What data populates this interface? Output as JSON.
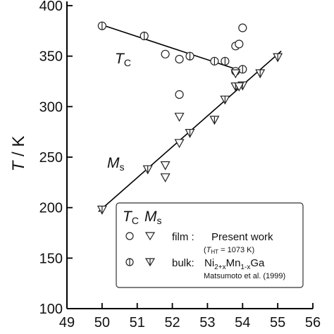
{
  "chart_data": {
    "type": "scatter",
    "xlim": [
      49,
      56
    ],
    "ylim": [
      100,
      400
    ],
    "y_label_T": "T",
    "y_label_sep": " / K",
    "x_ticks": [
      49,
      50,
      51,
      52,
      53,
      54,
      55,
      56
    ],
    "y_ticks": [
      100,
      150,
      200,
      250,
      300,
      350,
      400
    ],
    "series_labels": {
      "tc_main": "T",
      "tc_sub": "C",
      "ms_main": "M",
      "ms_sub": "s"
    },
    "series": [
      {
        "name": "T_C bulk",
        "marker": "circle-bar",
        "points": [
          [
            50.0,
            380
          ],
          [
            51.2,
            370
          ],
          [
            52.5,
            350
          ],
          [
            53.2,
            345
          ],
          [
            53.5,
            345
          ],
          [
            54.0,
            337
          ]
        ]
      },
      {
        "name": "T_C film",
        "marker": "circle",
        "points": [
          [
            51.8,
            352
          ],
          [
            52.2,
            347
          ],
          [
            52.2,
            312
          ],
          [
            53.8,
            360
          ],
          [
            53.9,
            362
          ],
          [
            54.0,
            378
          ],
          [
            53.8,
            335
          ]
        ]
      },
      {
        "name": "M_s bulk",
        "marker": "triangle-bar",
        "points": [
          [
            50.0,
            198
          ],
          [
            51.3,
            238
          ],
          [
            52.5,
            274
          ],
          [
            53.2,
            287
          ],
          [
            53.5,
            307
          ],
          [
            53.8,
            320
          ],
          [
            54.0,
            321
          ],
          [
            54.5,
            333
          ],
          [
            55.0,
            349
          ]
        ]
      },
      {
        "name": "M_s film",
        "marker": "triangle",
        "points": [
          [
            51.8,
            242
          ],
          [
            51.8,
            230
          ],
          [
            52.2,
            290
          ],
          [
            52.2,
            264
          ],
          [
            53.8,
            333
          ],
          [
            53.9,
            320
          ]
        ]
      }
    ],
    "fit_lines": [
      {
        "name": "T_C fit",
        "points": [
          [
            49.9,
            382
          ],
          [
            54.0,
            335
          ]
        ]
      },
      {
        "name": "M_s fit",
        "points": [
          [
            49.9,
            196
          ],
          [
            55.1,
            355
          ]
        ]
      }
    ],
    "legend": {
      "placement": "bottom-right",
      "header_tc_main": "T",
      "header_tc_sub": "C",
      "header_ms_main": "M",
      "header_ms_sub": "s",
      "film_label": "film :",
      "film_desc": "Present work",
      "tht_open": "(",
      "tht_T": "T",
      "tht_sub": "HT",
      "tht_value": " = 1073 K)",
      "bulk_label": "bulk:",
      "formula_ni": "Ni",
      "formula_sub1": "2+x",
      "formula_mn": "Mn",
      "formula_sub2": "1-x",
      "formula_ga": "Ga",
      "ref": "Matsumoto et al. (1999)"
    },
    "grid": false
  }
}
